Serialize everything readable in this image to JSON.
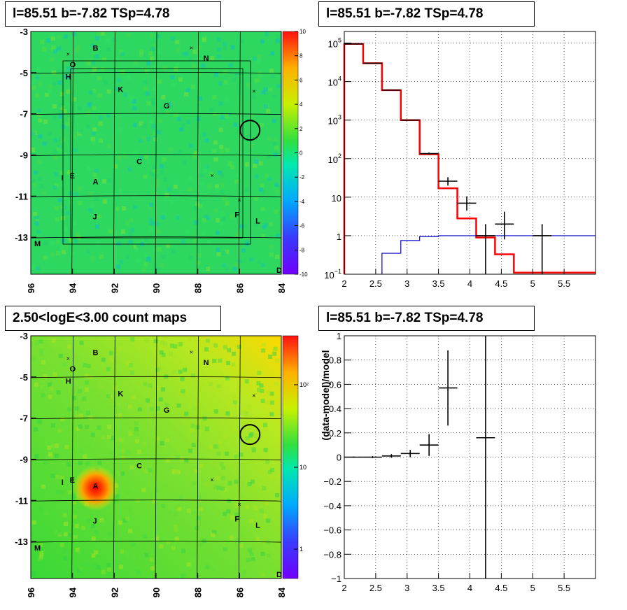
{
  "panels": {
    "top_left": {
      "title": "l=85.51 b=-7.82 TSp=4.78"
    },
    "top_right": {
      "title": "l=85.51 b=-7.82 TSp=4.78"
    },
    "bottom_left": {
      "title": "2.50<logE<3.00 count maps"
    },
    "bottom_right": {
      "title": "l=85.51 b=-7.82 TSp=4.78"
    }
  },
  "sky_labels": [
    {
      "text": "B",
      "l": 92.9,
      "b": -3.8
    },
    {
      "text": "O",
      "l": 94.0,
      "b": -4.6
    },
    {
      "text": "H",
      "l": 94.2,
      "b": -5.2
    },
    {
      "text": "N",
      "l": 87.6,
      "b": -4.3
    },
    {
      "text": "K",
      "l": 91.7,
      "b": -5.8
    },
    {
      "text": "G",
      "l": 89.5,
      "b": -6.6
    },
    {
      "text": "C",
      "l": 90.8,
      "b": -9.3
    },
    {
      "text": "I",
      "l": 94.4,
      "b": -10.1
    },
    {
      "text": "E",
      "l": 94.0,
      "b": -10.0
    },
    {
      "text": "A",
      "l": 92.9,
      "b": -10.3
    },
    {
      "text": "J",
      "l": 92.9,
      "b": -12.0
    },
    {
      "text": "F",
      "l": 86.1,
      "b": -11.9
    },
    {
      "text": "L",
      "l": 85.1,
      "b": -12.2
    },
    {
      "text": "M",
      "l": 95.7,
      "b": -13.3
    },
    {
      "text": "D",
      "l": 84.1,
      "b": -14.6
    }
  ],
  "sky_crosses": [
    {
      "l": 94.2,
      "b": -4.1
    },
    {
      "l": 88.3,
      "b": -3.8
    },
    {
      "l": 85.3,
      "b": -5.9
    },
    {
      "l": 87.3,
      "b": -10.0
    },
    {
      "l": 86.0,
      "b": -11.2
    }
  ],
  "chart_data": [
    {
      "type": "heatmap",
      "panel": "top_left",
      "title": "l=85.51 b=-7.82 TSp=4.78",
      "xlim": [
        96,
        84
      ],
      "ylim": [
        -14.8,
        -3
      ],
      "xticks": [
        "96",
        "94",
        "92",
        "90",
        "88",
        "86",
        "84"
      ],
      "yticks": [
        "-3",
        "-5",
        "-7",
        "-9",
        "-11",
        "-13"
      ],
      "colorbar": {
        "min": -10,
        "max": 10,
        "ticks": [
          "10",
          "8",
          "6",
          "4",
          "2",
          "0",
          "-2",
          "-4",
          "-6",
          "-8",
          "-10"
        ]
      },
      "background_value": 1,
      "source_circle": {
        "l": 85.5,
        "b": -7.8
      }
    },
    {
      "type": "line",
      "panel": "top_right",
      "title": "l=85.51 b=-7.82 TSp=4.78",
      "xlim": [
        2,
        6
      ],
      "ylim": [
        0.1,
        200000
      ],
      "ylog": true,
      "grid": true,
      "xticks": [
        "2",
        "2.5",
        "3",
        "3.5",
        "4",
        "4.5",
        "5",
        "5.5"
      ],
      "yticks": [
        {
          "v": 100000,
          "base": "10",
          "exp": "5"
        },
        {
          "v": 10000,
          "base": "10",
          "exp": "4"
        },
        {
          "v": 1000,
          "base": "10",
          "exp": "3"
        },
        {
          "v": 100,
          "base": "10",
          "exp": "2"
        },
        {
          "v": 10,
          "base": "10",
          "exp": ""
        },
        {
          "v": 1,
          "base": "1",
          "exp": ""
        },
        {
          "v": 0.1,
          "base": "10",
          "exp": "−1"
        }
      ],
      "series": [
        {
          "color": "#ff0000",
          "style": "step",
          "edges": [
            2.0,
            2.3,
            2.6,
            2.9,
            3.2,
            3.5,
            3.8,
            4.1,
            4.4,
            4.7,
            5.0,
            6.0
          ],
          "values": [
            95000,
            30000,
            6000,
            1000,
            130,
            17,
            2.8,
            0.9,
            0.33,
            0.11,
            0.11
          ]
        },
        {
          "color": "#0000cc",
          "style": "step",
          "edges": [
            2.6,
            2.9,
            3.2,
            3.5,
            3.8,
            4.1,
            4.4,
            4.7,
            5.0,
            6.0
          ],
          "values": [
            0.35,
            0.75,
            0.95,
            1.0,
            1.0,
            1.0,
            1.0,
            1.0,
            1.0
          ]
        }
      ],
      "points": [
        {
          "x": 2.15,
          "y": 95000,
          "xerr": 0.15,
          "ylo": 95000,
          "yhi": 95000
        },
        {
          "x": 2.45,
          "y": 30000,
          "xerr": 0.15,
          "ylo": 30000,
          "yhi": 30000
        },
        {
          "x": 2.75,
          "y": 6000,
          "xerr": 0.15,
          "ylo": 6000,
          "yhi": 6000
        },
        {
          "x": 3.05,
          "y": 1000,
          "xerr": 0.15,
          "ylo": 1000,
          "yhi": 1000
        },
        {
          "x": 3.35,
          "y": 135,
          "xerr": 0.15,
          "ylo": 125,
          "yhi": 145
        },
        {
          "x": 3.65,
          "y": 26,
          "xerr": 0.15,
          "ylo": 20,
          "yhi": 33
        },
        {
          "x": 3.95,
          "y": 7,
          "xerr": 0.15,
          "ylo": 4.5,
          "yhi": 10.5
        },
        {
          "x": 4.25,
          "y": 1,
          "xerr": 0.15,
          "ylo": 0.1,
          "yhi": 2
        },
        {
          "x": 4.55,
          "y": 2,
          "xerr": 0.15,
          "ylo": 0.8,
          "yhi": 4.2
        },
        {
          "x": 5.15,
          "y": 1,
          "xerr": 0.15,
          "ylo": 0.1,
          "yhi": 2
        }
      ]
    },
    {
      "type": "heatmap",
      "panel": "bottom_left",
      "title": "2.50<logE<3.00 count maps",
      "xlim": [
        96,
        84
      ],
      "ylim": [
        -14.8,
        -3
      ],
      "xticks": [
        "96",
        "94",
        "92",
        "90",
        "88",
        "86",
        "84"
      ],
      "yticks": [
        "-3",
        "-5",
        "-7",
        "-9",
        "-11",
        "-13"
      ],
      "colorbar": {
        "log": true,
        "ticks": [
          "10²",
          "10",
          "1"
        ]
      },
      "hotspot": {
        "l": 92.9,
        "b": -10.4
      },
      "source_circle": {
        "l": 85.5,
        "b": -7.8
      }
    },
    {
      "type": "scatter",
      "panel": "bottom_right",
      "title": "l=85.51 b=-7.82 TSp=4.78",
      "ylabel": "(data-model)/model",
      "xlim": [
        2,
        6
      ],
      "ylim": [
        -1,
        1
      ],
      "grid": true,
      "xticks": [
        "2",
        "2.5",
        "3",
        "3.5",
        "4",
        "4.5",
        "5",
        "5.5"
      ],
      "yticks": [
        "1",
        "0.8",
        "0.6",
        "0.4",
        "0.2",
        "0",
        "-0.2",
        "-0.4",
        "-0.6",
        "-0.8",
        "-1"
      ],
      "points": [
        {
          "x": 2.15,
          "y": 0.0,
          "xerr": 0.15,
          "yerr": 0.005
        },
        {
          "x": 2.45,
          "y": 0.0,
          "xerr": 0.15,
          "yerr": 0.008
        },
        {
          "x": 2.75,
          "y": 0.01,
          "xerr": 0.15,
          "yerr": 0.015
        },
        {
          "x": 3.05,
          "y": 0.03,
          "xerr": 0.15,
          "yerr": 0.03
        },
        {
          "x": 3.35,
          "y": 0.1,
          "xerr": 0.15,
          "yerr": 0.09
        },
        {
          "x": 3.65,
          "y": 0.57,
          "xerr": 0.15,
          "yerr": 0.31
        },
        {
          "x": 4.25,
          "y": 0.16,
          "xerr": 0.15,
          "yerr": 1.3
        }
      ]
    }
  ]
}
